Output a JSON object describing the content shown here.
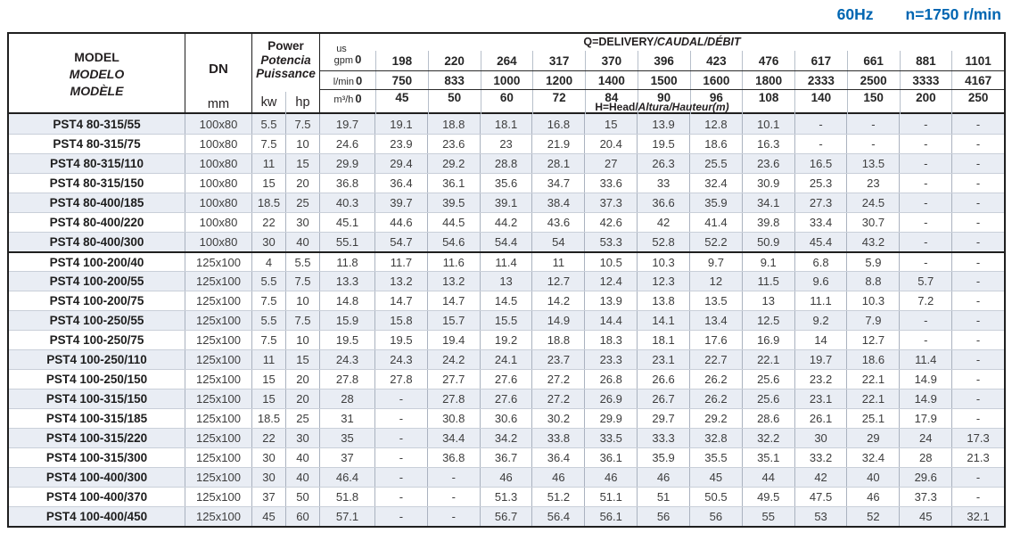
{
  "topbar": {
    "frequency": "60Hz",
    "speed": "n=1750 r/min"
  },
  "colors": {
    "accent_blue": "#0066b2",
    "row_shade": "#e9edf4",
    "border_dark": "#1f1f1f"
  },
  "table": {
    "header": {
      "model_lines": [
        "MODEL",
        "MODELO",
        "MODÈLE"
      ],
      "dn_label": "DN",
      "dn_unit": "mm",
      "power_lines": [
        "Power",
        "Potencia",
        "Puissance"
      ],
      "power_unit_kw": "kw",
      "power_unit_hp": "hp",
      "q_title_normal": "Q=DELIVERY",
      "q_title_italic": "/CAUDAL/DÉBIT",
      "h_title_normal": "H=Head/",
      "h_title_italic": "Altura/Hauteur(m)",
      "unit_gpm_top": "us",
      "unit_gpm": "gpm",
      "unit_lmin": "l/min",
      "unit_m3h": "m³/h",
      "flow_gpm": [
        "0",
        "198",
        "220",
        "264",
        "317",
        "370",
        "396",
        "423",
        "476",
        "617",
        "661",
        "881",
        "1101"
      ],
      "flow_lmin": [
        "0",
        "750",
        "833",
        "1000",
        "1200",
        "1400",
        "1500",
        "1600",
        "1800",
        "2333",
        "2500",
        "3333",
        "4167"
      ],
      "flow_m3h": [
        "0",
        "45",
        "50",
        "60",
        "72",
        "84",
        "90",
        "96",
        "108",
        "140",
        "150",
        "200",
        "250"
      ]
    },
    "rows": [
      {
        "model": "PST4 80-315/55",
        "dn": "100x80",
        "kw": "5.5",
        "hp": "7.5",
        "values": [
          "19.7",
          "19.1",
          "18.8",
          "18.1",
          "16.8",
          "15",
          "13.9",
          "12.8",
          "10.1",
          "-",
          "-",
          "-",
          "-"
        ]
      },
      {
        "model": "PST4 80-315/75",
        "dn": "100x80",
        "kw": "7.5",
        "hp": "10",
        "values": [
          "24.6",
          "23.9",
          "23.6",
          "23",
          "21.9",
          "20.4",
          "19.5",
          "18.6",
          "16.3",
          "-",
          "-",
          "-",
          "-"
        ]
      },
      {
        "model": "PST4 80-315/110",
        "dn": "100x80",
        "kw": "11",
        "hp": "15",
        "values": [
          "29.9",
          "29.4",
          "29.2",
          "28.8",
          "28.1",
          "27",
          "26.3",
          "25.5",
          "23.6",
          "16.5",
          "13.5",
          "-",
          "-"
        ]
      },
      {
        "model": "PST4 80-315/150",
        "dn": "100x80",
        "kw": "15",
        "hp": "20",
        "values": [
          "36.8",
          "36.4",
          "36.1",
          "35.6",
          "34.7",
          "33.6",
          "33",
          "32.4",
          "30.9",
          "25.3",
          "23",
          "-",
          "-"
        ]
      },
      {
        "model": "PST4 80-400/185",
        "dn": "100x80",
        "kw": "18.5",
        "hp": "25",
        "values": [
          "40.3",
          "39.7",
          "39.5",
          "39.1",
          "38.4",
          "37.3",
          "36.6",
          "35.9",
          "34.1",
          "27.3",
          "24.5",
          "-",
          "-"
        ]
      },
      {
        "model": "PST4 80-400/220",
        "dn": "100x80",
        "kw": "22",
        "hp": "30",
        "values": [
          "45.1",
          "44.6",
          "44.5",
          "44.2",
          "43.6",
          "42.6",
          "42",
          "41.4",
          "39.8",
          "33.4",
          "30.7",
          "-",
          "-"
        ]
      },
      {
        "model": "PST4 80-400/300",
        "dn": "100x80",
        "kw": "30",
        "hp": "40",
        "values": [
          "55.1",
          "54.7",
          "54.6",
          "54.4",
          "54",
          "53.3",
          "52.8",
          "52.2",
          "50.9",
          "45.4",
          "43.2",
          "-",
          "-"
        ]
      },
      {
        "model": "PST4 100-200/40",
        "dn": "125x100",
        "kw": "4",
        "hp": "5.5",
        "values": [
          "11.8",
          "11.7",
          "11.6",
          "11.4",
          "11",
          "10.5",
          "10.3",
          "9.7",
          "9.1",
          "6.8",
          "5.9",
          "-",
          "-"
        ]
      },
      {
        "model": "PST4 100-200/55",
        "dn": "125x100",
        "kw": "5.5",
        "hp": "7.5",
        "values": [
          "13.3",
          "13.2",
          "13.2",
          "13",
          "12.7",
          "12.4",
          "12.3",
          "12",
          "11.5",
          "9.6",
          "8.8",
          "5.7",
          "-"
        ]
      },
      {
        "model": "PST4 100-200/75",
        "dn": "125x100",
        "kw": "7.5",
        "hp": "10",
        "values": [
          "14.8",
          "14.7",
          "14.7",
          "14.5",
          "14.2",
          "13.9",
          "13.8",
          "13.5",
          "13",
          "11.1",
          "10.3",
          "7.2",
          "-"
        ]
      },
      {
        "model": "PST4 100-250/55",
        "dn": "125x100",
        "kw": "5.5",
        "hp": "7.5",
        "values": [
          "15.9",
          "15.8",
          "15.7",
          "15.5",
          "14.9",
          "14.4",
          "14.1",
          "13.4",
          "12.5",
          "9.2",
          "7.9",
          "-",
          "-"
        ]
      },
      {
        "model": "PST4 100-250/75",
        "dn": "125x100",
        "kw": "7.5",
        "hp": "10",
        "values": [
          "19.5",
          "19.5",
          "19.4",
          "19.2",
          "18.8",
          "18.3",
          "18.1",
          "17.6",
          "16.9",
          "14",
          "12.7",
          "-",
          "-"
        ]
      },
      {
        "model": "PST4 100-250/110",
        "dn": "125x100",
        "kw": "11",
        "hp": "15",
        "values": [
          "24.3",
          "24.3",
          "24.2",
          "24.1",
          "23.7",
          "23.3",
          "23.1",
          "22.7",
          "22.1",
          "19.7",
          "18.6",
          "11.4",
          "-"
        ]
      },
      {
        "model": "PST4 100-250/150",
        "dn": "125x100",
        "kw": "15",
        "hp": "20",
        "values": [
          "27.8",
          "27.8",
          "27.7",
          "27.6",
          "27.2",
          "26.8",
          "26.6",
          "26.2",
          "25.6",
          "23.2",
          "22.1",
          "14.9",
          "-"
        ]
      },
      {
        "model": "PST4 100-315/150",
        "dn": "125x100",
        "kw": "15",
        "hp": "20",
        "values": [
          "28",
          "-",
          "27.8",
          "27.6",
          "27.2",
          "26.9",
          "26.7",
          "26.2",
          "25.6",
          "23.1",
          "22.1",
          "14.9",
          "-"
        ]
      },
      {
        "model": "PST4 100-315/185",
        "dn": "125x100",
        "kw": "18.5",
        "hp": "25",
        "values": [
          "31",
          "-",
          "30.8",
          "30.6",
          "30.2",
          "29.9",
          "29.7",
          "29.2",
          "28.6",
          "26.1",
          "25.1",
          "17.9",
          "-"
        ]
      },
      {
        "model": "PST4 100-315/220",
        "dn": "125x100",
        "kw": "22",
        "hp": "30",
        "values": [
          "35",
          "-",
          "34.4",
          "34.2",
          "33.8",
          "33.5",
          "33.3",
          "32.8",
          "32.2",
          "30",
          "29",
          "24",
          "17.3"
        ]
      },
      {
        "model": "PST4 100-315/300",
        "dn": "125x100",
        "kw": "30",
        "hp": "40",
        "values": [
          "37",
          "-",
          "36.8",
          "36.7",
          "36.4",
          "36.1",
          "35.9",
          "35.5",
          "35.1",
          "33.2",
          "32.4",
          "28",
          "21.3"
        ]
      },
      {
        "model": "PST4 100-400/300",
        "dn": "125x100",
        "kw": "30",
        "hp": "40",
        "values": [
          "46.4",
          "-",
          "-",
          "46",
          "46",
          "46",
          "46",
          "45",
          "44",
          "42",
          "40",
          "29.6",
          "-"
        ]
      },
      {
        "model": "PST4 100-400/370",
        "dn": "125x100",
        "kw": "37",
        "hp": "50",
        "values": [
          "51.8",
          "-",
          "-",
          "51.3",
          "51.2",
          "51.1",
          "51",
          "50.5",
          "49.5",
          "47.5",
          "46",
          "37.3",
          "-"
        ]
      },
      {
        "model": "PST4 100-400/450",
        "dn": "125x100",
        "kw": "45",
        "hp": "60",
        "values": [
          "57.1",
          "-",
          "-",
          "56.7",
          "56.4",
          "56.1",
          "56",
          "56",
          "55",
          "53",
          "52",
          "45",
          "32.1"
        ]
      }
    ]
  }
}
